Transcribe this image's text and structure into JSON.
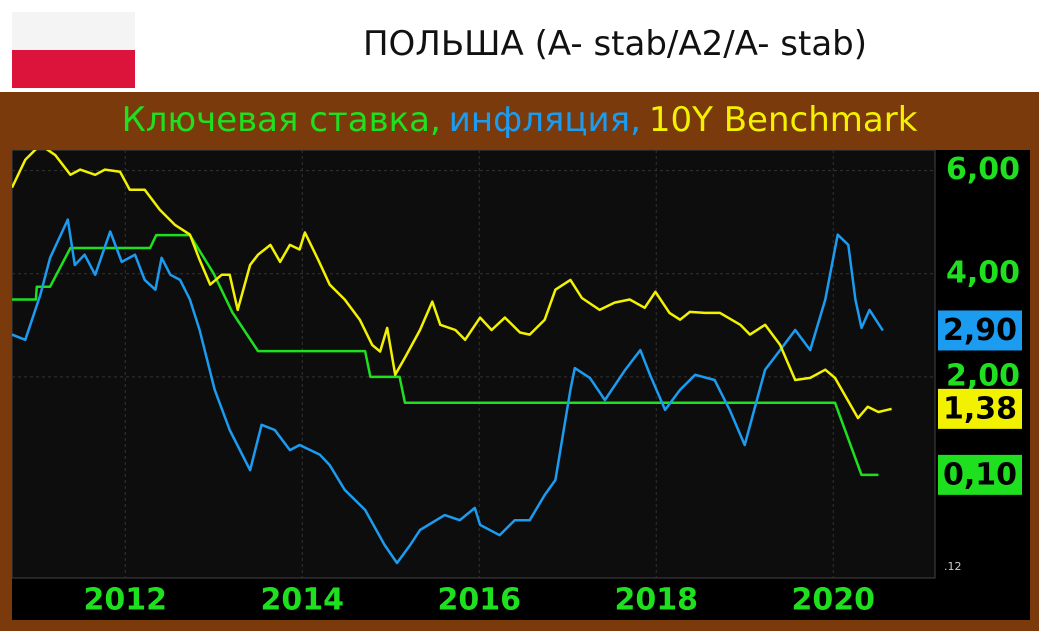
{
  "header": {
    "title": "ПОЛЬША (A- stab/A2/A- stab)",
    "subtitle": [
      "Ключевая ставка,",
      "инфляция,",
      "10Y Benchmark"
    ]
  },
  "chart_data": {
    "type": "line",
    "xlim": [
      2010.72,
      2021.15
    ],
    "xticks": [
      2012,
      2014,
      2016,
      2018,
      2020
    ],
    "ylim": [
      -1.9,
      6.4
    ],
    "yticks": [
      {
        "value": 2,
        "label": "2,00"
      },
      {
        "value": 4,
        "label": "4,00"
      },
      {
        "value": 6,
        "label": "6,00"
      }
    ],
    "grid": true,
    "corner_label": ".12",
    "series": [
      {
        "name": "Ключевая ставка",
        "color": "#1fe01f",
        "last_label": "0,10",
        "x": [
          2010.72,
          2010.99,
          2011.0,
          2011.15,
          2011.38,
          2012.28,
          2012.35,
          2012.73,
          2013.0,
          2013.21,
          2013.5,
          2014.71,
          2014.77,
          2015.1,
          2015.16,
          2020.02,
          2020.32,
          2020.51
        ],
        "values": [
          3.5,
          3.5,
          3.75,
          3.75,
          4.5,
          4.5,
          4.75,
          4.75,
          4.0,
          3.25,
          2.5,
          2.5,
          2.0,
          2.0,
          1.5,
          1.5,
          0.1,
          0.1
        ]
      },
      {
        "name": "инфляция",
        "color": "#1c9cf0",
        "last_label": "2,90",
        "x": [
          2010.72,
          2010.87,
          2011.04,
          2011.15,
          2011.35,
          2011.43,
          2011.54,
          2011.66,
          2011.83,
          2011.96,
          2012.11,
          2012.22,
          2012.34,
          2012.41,
          2012.51,
          2012.62,
          2012.73,
          2012.84,
          2013.01,
          2013.18,
          2013.41,
          2013.54,
          2013.69,
          2013.86,
          2013.97,
          2014.2,
          2014.31,
          2014.48,
          2014.71,
          2014.93,
          2015.07,
          2015.22,
          2015.33,
          2015.61,
          2015.78,
          2015.95,
          2016.01,
          2016.23,
          2016.4,
          2016.57,
          2016.74,
          2016.86,
          2017.03,
          2017.08,
          2017.25,
          2017.42,
          2017.65,
          2017.82,
          2017.93,
          2018.1,
          2018.27,
          2018.44,
          2018.66,
          2018.83,
          2019.0,
          2019.23,
          2019.4,
          2019.57,
          2019.74,
          2019.91,
          2020.05,
          2020.17,
          2020.25,
          2020.32,
          2020.41,
          2020.56
        ],
        "values": [
          2.82,
          2.72,
          3.59,
          4.31,
          5.05,
          4.17,
          4.37,
          3.98,
          4.82,
          4.23,
          4.37,
          3.88,
          3.69,
          4.31,
          3.98,
          3.88,
          3.5,
          2.91,
          1.75,
          0.97,
          0.19,
          1.07,
          0.97,
          0.58,
          0.68,
          0.49,
          0.29,
          -0.19,
          -0.58,
          -1.26,
          -1.61,
          -1.26,
          -0.97,
          -0.68,
          -0.78,
          -0.54,
          -0.87,
          -1.07,
          -0.78,
          -0.78,
          -0.29,
          0.0,
          1.75,
          2.17,
          1.98,
          1.55,
          2.14,
          2.52,
          2.04,
          1.36,
          1.75,
          2.04,
          1.94,
          1.36,
          0.68,
          2.14,
          2.52,
          2.91,
          2.52,
          3.5,
          4.76,
          4.56,
          3.5,
          2.95,
          3.3,
          2.9
        ]
      },
      {
        "name": "10Y Benchmark",
        "color": "#f2f200",
        "last_label": "1,38",
        "x": [
          2010.72,
          2010.87,
          2011.04,
          2011.21,
          2011.38,
          2011.49,
          2011.66,
          2011.77,
          2011.94,
          2012.05,
          2012.22,
          2012.39,
          2012.56,
          2012.73,
          2012.84,
          2012.96,
          2013.09,
          2013.18,
          2013.27,
          2013.41,
          2013.5,
          2013.64,
          2013.75,
          2013.86,
          2013.97,
          2014.03,
          2014.18,
          2014.31,
          2014.48,
          2014.65,
          2014.79,
          2014.88,
          2014.96,
          2015.05,
          2015.16,
          2015.33,
          2015.47,
          2015.56,
          2015.73,
          2015.84,
          2016.01,
          2016.14,
          2016.29,
          2016.46,
          2016.57,
          2016.74,
          2016.86,
          2017.03,
          2017.16,
          2017.36,
          2017.53,
          2017.7,
          2017.87,
          2017.99,
          2018.15,
          2018.27,
          2018.38,
          2018.55,
          2018.72,
          2018.95,
          2019.06,
          2019.23,
          2019.4,
          2019.57,
          2019.74,
          2019.91,
          2020.02,
          2020.13,
          2020.28,
          2020.39,
          2020.51,
          2020.66
        ],
        "values": [
          5.67,
          6.21,
          6.5,
          6.3,
          5.92,
          6.02,
          5.92,
          6.02,
          5.98,
          5.63,
          5.63,
          5.24,
          4.95,
          4.76,
          4.27,
          3.79,
          3.98,
          3.98,
          3.3,
          4.17,
          4.37,
          4.56,
          4.23,
          4.56,
          4.47,
          4.8,
          4.27,
          3.79,
          3.5,
          3.11,
          2.62,
          2.49,
          2.95,
          2.04,
          2.37,
          2.91,
          3.46,
          3.01,
          2.91,
          2.72,
          3.15,
          2.91,
          3.15,
          2.86,
          2.82,
          3.11,
          3.69,
          3.88,
          3.53,
          3.3,
          3.44,
          3.5,
          3.34,
          3.65,
          3.24,
          3.11,
          3.26,
          3.24,
          3.24,
          3.01,
          2.82,
          3.01,
          2.62,
          1.94,
          1.98,
          2.14,
          1.98,
          1.65,
          1.2,
          1.42,
          1.32,
          1.38
        ]
      }
    ]
  }
}
